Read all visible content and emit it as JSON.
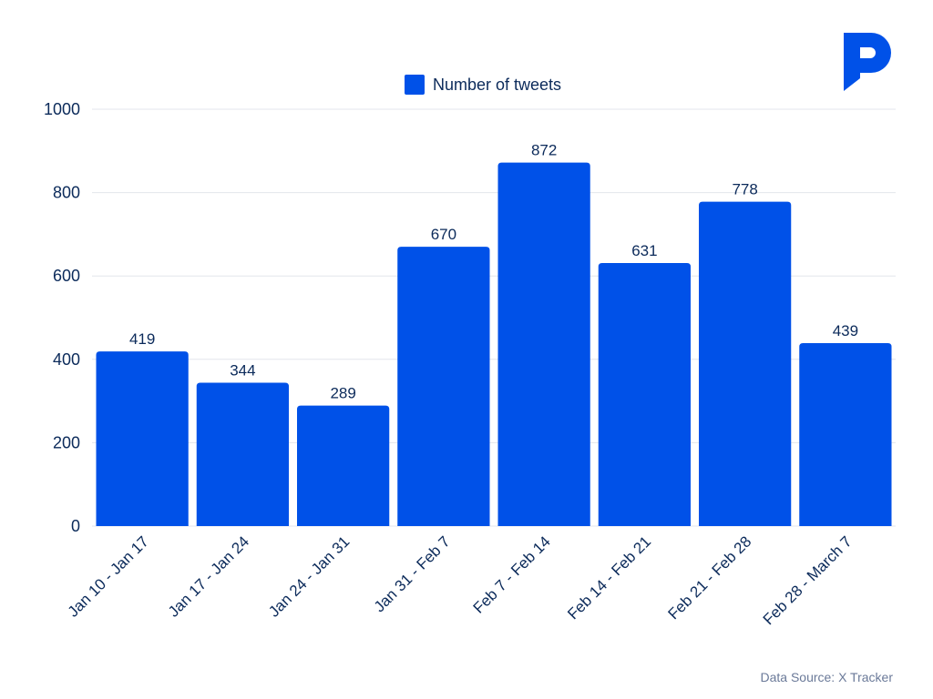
{
  "brand": {
    "accent": "#0051e8",
    "text": "#0b2a5a",
    "logo_icon": "p-logo-icon"
  },
  "legend": {
    "label": "Number of tweets"
  },
  "source": "Data Source: X Tracker",
  "chart_data": {
    "type": "bar",
    "categories": [
      "Jan 10 - Jan 17",
      "Jan 17 - Jan 24",
      "Jan 24 - Jan 31",
      "Jan 31 - Feb 7",
      "Feb 7 - Feb 14",
      "Feb 14 - Feb 21",
      "Feb 21 - Feb 28",
      "Feb 28 - March 7"
    ],
    "series": [
      {
        "name": "Number of tweets",
        "values": [
          419,
          344,
          289,
          670,
          872,
          631,
          778,
          439
        ],
        "color": "#0051e8"
      }
    ],
    "ylim": [
      0,
      1000
    ],
    "yticks": [
      0,
      200,
      400,
      600,
      800,
      1000
    ],
    "grid": true,
    "legend_position": "top-center",
    "data_labels": true
  }
}
